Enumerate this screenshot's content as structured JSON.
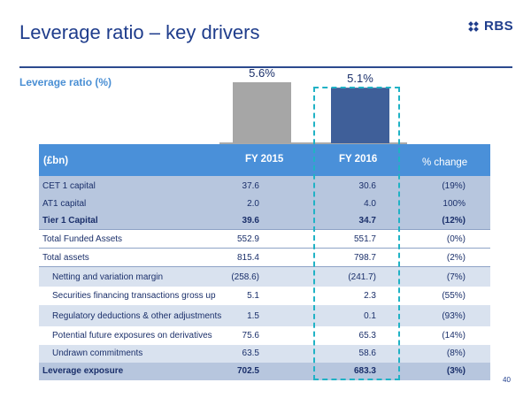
{
  "title": "Leverage ratio – key drivers",
  "brand": {
    "name": "RBS",
    "color": "#1f3d8c"
  },
  "subtitle": "Leverage ratio (%)",
  "chart_data": {
    "type": "bar",
    "title": "Leverage ratio (%)",
    "categories": [
      "FY 2015",
      "FY 2016"
    ],
    "values": [
      5.6,
      5.1
    ],
    "value_labels": [
      "5.6%",
      "5.1%"
    ],
    "colors": [
      "#a6a6a6",
      "#3f5f99"
    ],
    "ylim": [
      0,
      6.5
    ]
  },
  "table": {
    "headers": [
      "(£bn)",
      "FY 2015",
      "FY 2016",
      "% change"
    ],
    "rows": [
      {
        "label": "CET 1 capital",
        "fy2015": "37.6",
        "fy2016": "30.6",
        "change": "(19%)"
      },
      {
        "label": "AT1 capital",
        "fy2015": "2.0",
        "fy2016": "4.0",
        "change": "100%"
      },
      {
        "label": "Tier 1 Capital",
        "fy2015": "39.6",
        "fy2016": "34.7",
        "change": "(12%)"
      },
      {
        "label": "Total Funded Assets",
        "fy2015": "552.9",
        "fy2016": "551.7",
        "change": "(0%)"
      },
      {
        "label": "Total assets",
        "fy2015": "815.4",
        "fy2016": "798.7",
        "change": "(2%)"
      },
      {
        "label": "Netting and variation margin",
        "fy2015": "(258.6)",
        "fy2016": "(241.7)",
        "change": "(7%)"
      },
      {
        "label": "Securities financing transactions gross up",
        "fy2015": "5.1",
        "fy2016": "2.3",
        "change": "(55%)"
      },
      {
        "label": "Regulatory deductions & other adjustments",
        "fy2015": "1.5",
        "fy2016": "0.1",
        "change": "(93%)"
      },
      {
        "label": "Potential future exposures on derivatives",
        "fy2015": "75.6",
        "fy2016": "65.3",
        "change": "(14%)"
      },
      {
        "label": "Undrawn commitments",
        "fy2015": "63.5",
        "fy2016": "58.6",
        "change": "(8%)"
      },
      {
        "label": "Leverage exposure",
        "fy2015": "702.5",
        "fy2016": "683.3",
        "change": "(3%)"
      }
    ]
  },
  "page_number": "40"
}
